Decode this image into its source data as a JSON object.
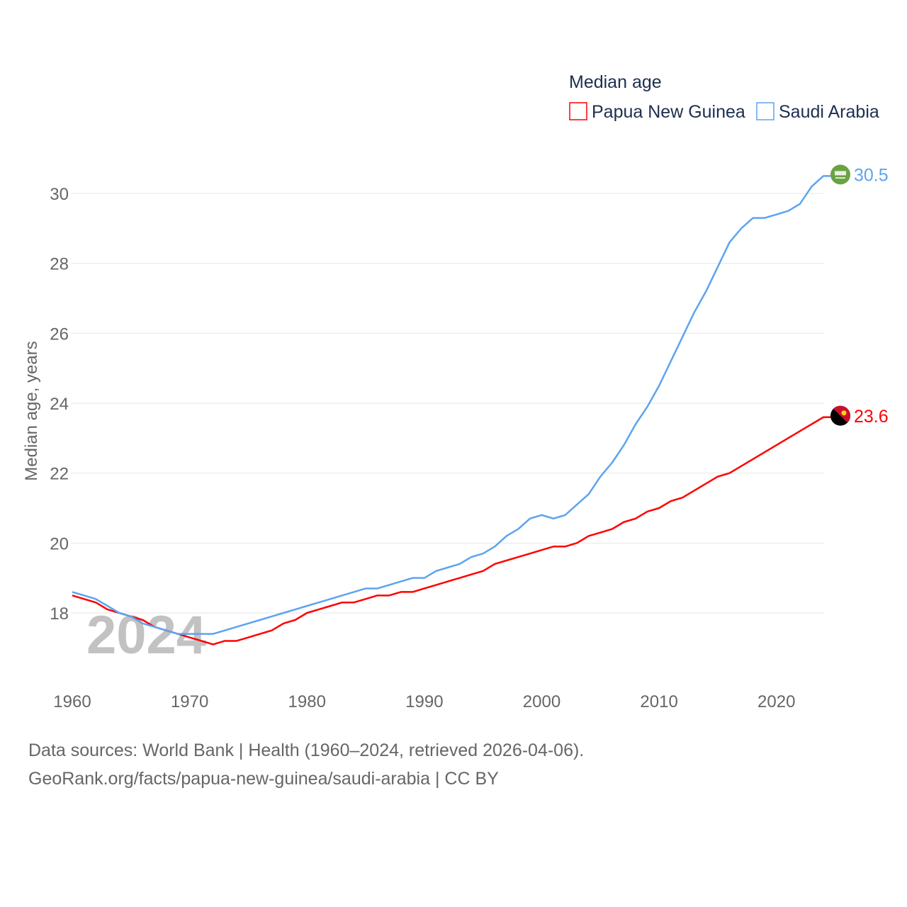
{
  "chart_data": {
    "type": "line",
    "legend_title": "Median age",
    "legend_position": "top-right",
    "ylabel": "Median age, years",
    "xlabel": "",
    "ylim": [
      16.3,
      31
    ],
    "xlim": [
      1960,
      2024
    ],
    "yticks": [
      18,
      20,
      22,
      24,
      26,
      28,
      30
    ],
    "xticks": [
      1960,
      1970,
      1980,
      1990,
      2000,
      2010,
      2020
    ],
    "grid": true,
    "year_watermark": "2024",
    "x": [
      1960,
      1961,
      1962,
      1963,
      1964,
      1965,
      1966,
      1967,
      1968,
      1969,
      1970,
      1971,
      1972,
      1973,
      1974,
      1975,
      1976,
      1977,
      1978,
      1979,
      1980,
      1981,
      1982,
      1983,
      1984,
      1985,
      1986,
      1987,
      1988,
      1989,
      1990,
      1991,
      1992,
      1993,
      1994,
      1995,
      1996,
      1997,
      1998,
      1999,
      2000,
      2001,
      2002,
      2003,
      2004,
      2005,
      2006,
      2007,
      2008,
      2009,
      2010,
      2011,
      2012,
      2013,
      2014,
      2015,
      2016,
      2017,
      2018,
      2019,
      2020,
      2021,
      2022,
      2023,
      2024
    ],
    "series": [
      {
        "name": "Papua New Guinea",
        "color": "#ff0000",
        "end_label": "23.6",
        "values": [
          18.5,
          18.4,
          18.3,
          18.1,
          18.0,
          17.9,
          17.8,
          17.6,
          17.5,
          17.4,
          17.3,
          17.2,
          17.1,
          17.2,
          17.2,
          17.3,
          17.4,
          17.5,
          17.7,
          17.8,
          18.0,
          18.1,
          18.2,
          18.3,
          18.3,
          18.4,
          18.5,
          18.5,
          18.6,
          18.6,
          18.7,
          18.8,
          18.9,
          19.0,
          19.1,
          19.2,
          19.4,
          19.5,
          19.6,
          19.7,
          19.8,
          19.9,
          19.9,
          20.0,
          20.2,
          20.3,
          20.4,
          20.6,
          20.7,
          20.9,
          21.0,
          21.2,
          21.3,
          21.5,
          21.7,
          21.9,
          22.0,
          22.2,
          22.4,
          22.6,
          22.8,
          23.0,
          23.2,
          23.4,
          23.6
        ]
      },
      {
        "name": "Saudi Arabia",
        "color": "#5ba4f0",
        "end_label": "30.5",
        "values": [
          18.6,
          18.5,
          18.4,
          18.2,
          18.0,
          17.9,
          17.7,
          17.6,
          17.5,
          17.4,
          17.4,
          17.4,
          17.4,
          17.5,
          17.6,
          17.7,
          17.8,
          17.9,
          18.0,
          18.1,
          18.2,
          18.3,
          18.4,
          18.5,
          18.6,
          18.7,
          18.7,
          18.8,
          18.9,
          19.0,
          19.0,
          19.2,
          19.3,
          19.4,
          19.6,
          19.7,
          19.9,
          20.2,
          20.4,
          20.7,
          20.8,
          20.7,
          20.8,
          21.1,
          21.4,
          21.9,
          22.3,
          22.8,
          23.4,
          23.9,
          24.5,
          25.2,
          25.9,
          26.6,
          27.2,
          27.9,
          28.6,
          29.0,
          29.3,
          29.3,
          29.4,
          29.5,
          29.7,
          30.2,
          30.5
        ]
      }
    ]
  },
  "footer": {
    "line1": "Data sources: World Bank | Health (1960–2024, retrieved 2026-04-06).",
    "line2": "GeoRank.org/facts/papua-new-guinea/saudi-arabia | CC BY"
  }
}
